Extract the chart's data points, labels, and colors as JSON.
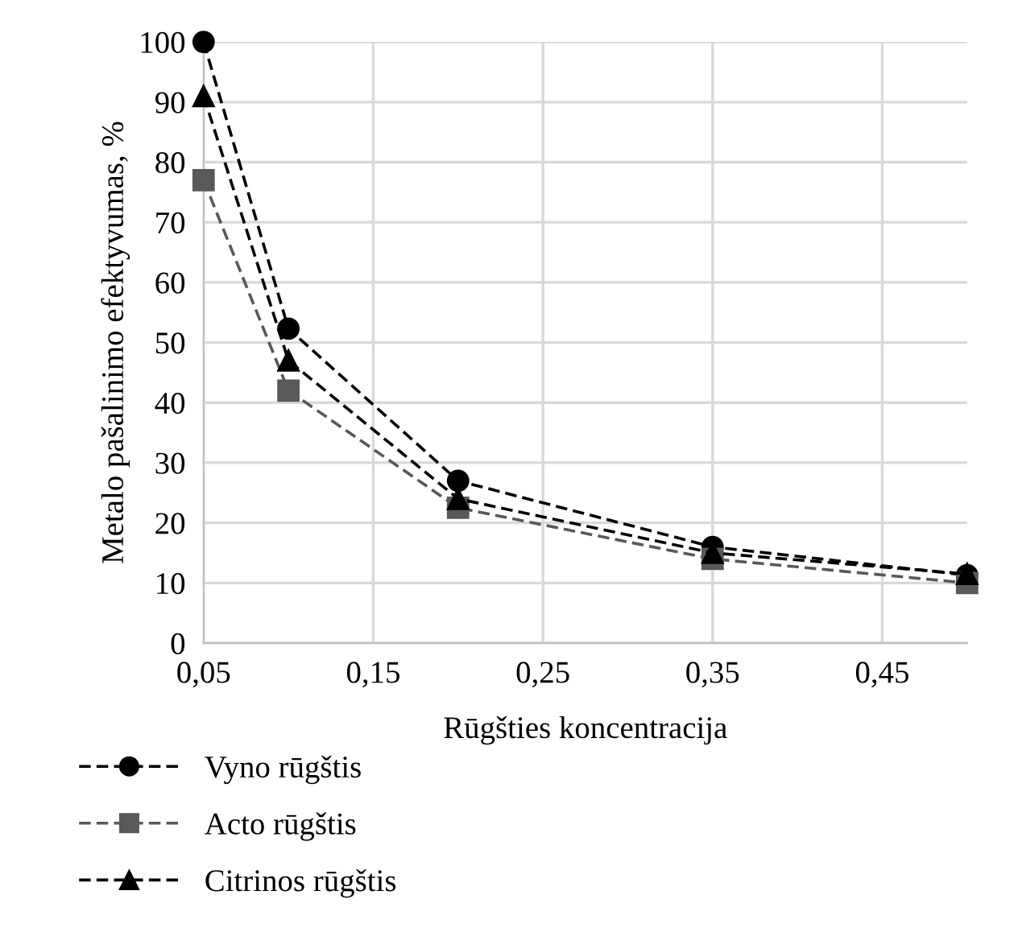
{
  "chart_data": {
    "type": "line",
    "xlabel": "Rūgšties koncentracija",
    "ylabel": "Metalo pašalinimo efektyvumas, %",
    "x": [
      0.05,
      0.1,
      0.2,
      0.35,
      0.5
    ],
    "series": [
      {
        "name": "Vyno rūgštis",
        "color": "#000000",
        "marker": "circle",
        "values": [
          100,
          52.3,
          27,
          16,
          11.3
        ]
      },
      {
        "name": "Acto rūgštis",
        "color": "#595959",
        "marker": "square",
        "values": [
          77,
          42,
          22.5,
          14,
          10
        ]
      },
      {
        "name": "Citrinos rūgštis",
        "color": "#000000",
        "marker": "triangle",
        "values": [
          91,
          47,
          24,
          15,
          11.5
        ]
      }
    ],
    "line_style": "dashed",
    "xlim": [
      0.05,
      0.5
    ],
    "xticks": [
      {
        "value": 0.05,
        "label": "0,05"
      },
      {
        "value": 0.15,
        "label": "0,15"
      },
      {
        "value": 0.25,
        "label": "0,25"
      },
      {
        "value": 0.35,
        "label": "0,35"
      },
      {
        "value": 0.45,
        "label": "0,45"
      }
    ],
    "ylim": [
      0,
      100
    ],
    "yticks": [
      0,
      10,
      20,
      30,
      40,
      50,
      60,
      70,
      80,
      90,
      100
    ],
    "grid": true,
    "legend": "bottom"
  }
}
